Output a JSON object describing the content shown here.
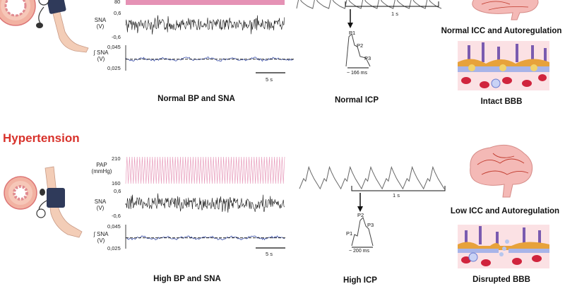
{
  "section_title": "Hypertension",
  "normal": {
    "caption_bp": "Normal BP and SNA",
    "caption_icp": "Normal ICP",
    "caption_bbb": "Intact BBB",
    "caption_brain": "Normal ICC and Autoregulation",
    "pap_tick_top": "80",
    "sna_label": "SNA\n(V)",
    "sna_tick_top": "0,6",
    "sna_tick_bottom": "-0,6",
    "isna_label": "∫ SNA\n(V)",
    "isna_tick_top": "0,045",
    "isna_tick_bottom": "0,025",
    "scale_5s": "5 s",
    "scale_1s": "1 s",
    "peaks": [
      "P1",
      "P2",
      "P3"
    ],
    "pulse_width": "~ 166 ms"
  },
  "hypertension": {
    "caption_bp": "High BP and SNA",
    "caption_icp": "High ICP",
    "caption_bbb": "Disrupted BBB",
    "caption_brain": "Low ICC and Autoregulation",
    "pap_label": "PAP\n(mmHg)",
    "pap_tick_top": "210",
    "pap_tick_bottom": "160",
    "sna_label": "SNA\n(V)",
    "sna_tick_top": "0,6",
    "sna_tick_bottom": "-0,6",
    "isna_label": "∫ SNA\n(V)",
    "isna_tick_top": "0,045",
    "isna_tick_bottom": "0,025",
    "scale_5s": "5 s",
    "scale_1s": "1 s",
    "peaks": [
      "P1",
      "P2",
      "P3"
    ],
    "pulse_width": "~ 200 ms"
  },
  "colors": {
    "accent_red": "#d8322b",
    "pap_trace": "#e592b5",
    "sna_trace": "#111111",
    "isna_trace": "#3a4fa8"
  },
  "icons": {
    "vessel": "blood-vessel-cross-section-icon",
    "arm_cuff": "arm-with-bp-cuff-icon",
    "brain": "brain-icon",
    "bbb": "blood-brain-barrier-icon"
  }
}
